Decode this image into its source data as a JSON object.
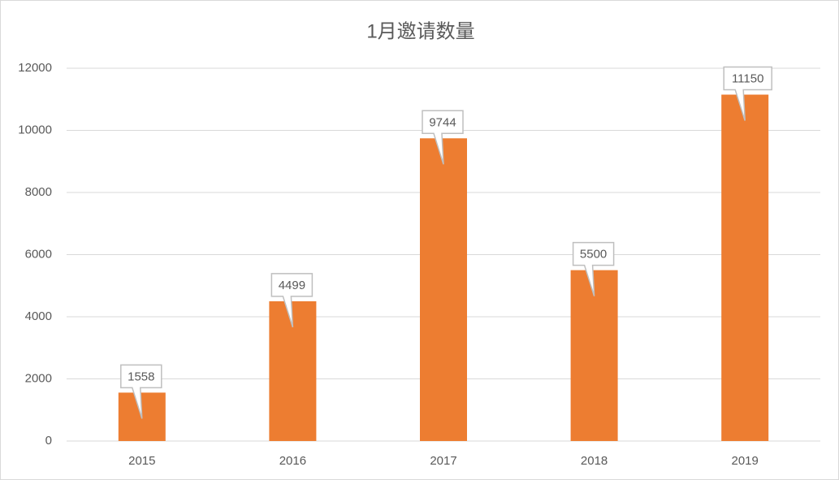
{
  "chart_data": {
    "type": "bar",
    "title": "1月邀请数量",
    "categories": [
      "2015",
      "2016",
      "2017",
      "2018",
      "2019"
    ],
    "values": [
      1558,
      4499,
      9744,
      5500,
      11150
    ],
    "color": "#ed7d31",
    "ylim": [
      0,
      12000
    ],
    "yticks": [
      0,
      2000,
      4000,
      6000,
      8000,
      10000,
      12000
    ],
    "grid": true
  }
}
